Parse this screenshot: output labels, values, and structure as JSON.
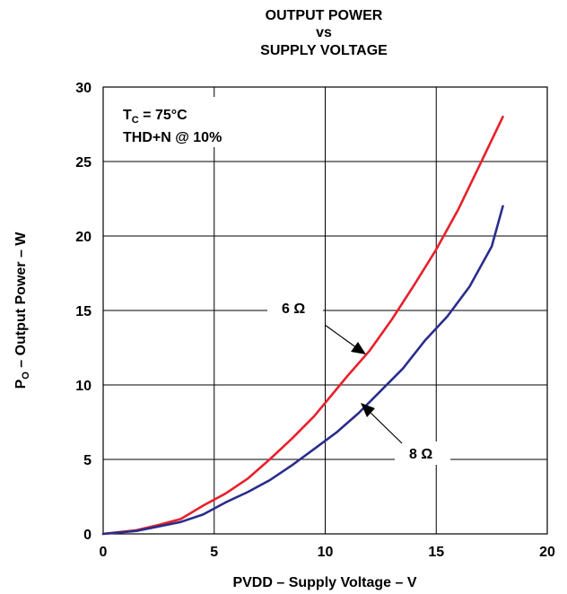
{
  "chart_data": {
    "type": "line",
    "title": [
      "OUTPUT POWER",
      "vs",
      "SUPPLY VOLTAGE"
    ],
    "xlabel": "PVDD – Supply Voltage – V",
    "ylabel": {
      "main": "P",
      "sub": "O",
      "rest": " – Output Power – W"
    },
    "xlim": [
      0,
      20
    ],
    "ylim": [
      0,
      30
    ],
    "xticks": [
      0,
      5,
      10,
      15,
      20
    ],
    "yticks": [
      0,
      5,
      10,
      15,
      20,
      25,
      30
    ],
    "grid": true,
    "annotations": {
      "condition1": {
        "main": "T",
        "sub": "C",
        "rest": " = 75°C"
      },
      "condition2": "THD+N @ 10%"
    },
    "series": [
      {
        "name": "6 Ω",
        "color": "#e8202a",
        "x": [
          0,
          1.5,
          2.5,
          3.5,
          4.5,
          5.5,
          6.5,
          7.5,
          8.5,
          9.5,
          10.5,
          11,
          12,
          13,
          14,
          15,
          16,
          17,
          18
        ],
        "y": [
          0,
          0.25,
          0.6,
          1.0,
          1.9,
          2.7,
          3.7,
          5.0,
          6.4,
          7.9,
          9.7,
          10.6,
          12.3,
          14.4,
          16.7,
          19.1,
          21.8,
          24.9,
          28.0
        ]
      },
      {
        "name": "8 Ω",
        "color": "#2a2d8c",
        "x": [
          0,
          1.5,
          2.5,
          3.5,
          4.5,
          5.5,
          6.5,
          7.5,
          8.5,
          9.5,
          10.5,
          11.5,
          12.5,
          13.5,
          14.5,
          15.5,
          16.5,
          17.5,
          18
        ],
        "y": [
          0,
          0.2,
          0.5,
          0.8,
          1.3,
          2.1,
          2.8,
          3.6,
          4.6,
          5.7,
          6.8,
          8.1,
          9.6,
          11.1,
          13.0,
          14.6,
          16.6,
          19.3,
          22.0
        ]
      }
    ],
    "series_labels": [
      "6 Ω",
      "8 Ω"
    ]
  }
}
